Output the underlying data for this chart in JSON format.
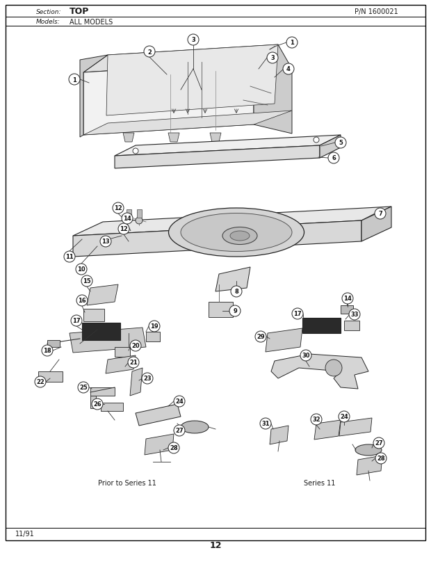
{
  "title_section": "Section:",
  "title_section_value": "TOP",
  "title_pn": "P/N 1600021",
  "title_models": "Models:",
  "title_models_value": "ALL MODELS",
  "page_number": "12",
  "footer_date": "11/91",
  "bg_color": "#ffffff",
  "border_color": "#000000",
  "text_color": "#1a1a1a",
  "label_prior": "Prior to Series 11",
  "label_series": "Series 11",
  "fig_width": 6.2,
  "fig_height": 8.12,
  "dpi": 100
}
